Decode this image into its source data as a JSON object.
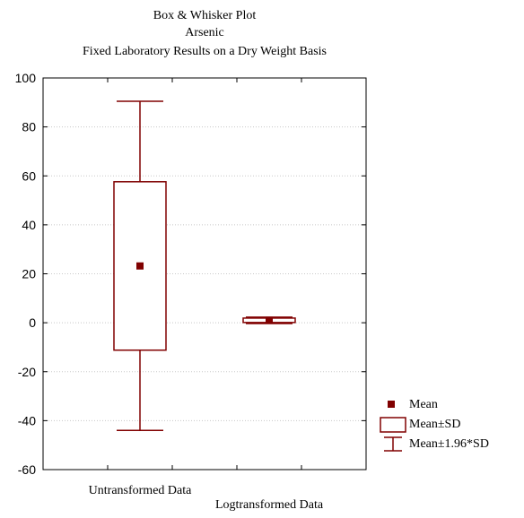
{
  "chart_data": {
    "type": "boxplot",
    "title_lines": [
      "Box & Whisker Plot",
      "Arsenic",
      "Fixed Laboratory Results on a Dry Weight Basis"
    ],
    "ylim": [
      -60,
      100
    ],
    "yticks": [
      -60,
      -40,
      -20,
      0,
      20,
      40,
      60,
      80,
      100
    ],
    "grid": true,
    "legend_position": "bottom-right",
    "categories": [
      "Untransformed Data",
      "Logtransformed Data"
    ],
    "boxes": [
      {
        "category": "Untransformed Data",
        "mean": 23.2,
        "sd_low": -11.2,
        "sd_high": 57.6,
        "whisker_low": -44.0,
        "whisker_high": 90.5
      },
      {
        "category": "Logtransformed Data",
        "mean": 1.0,
        "sd_low": 0.1,
        "sd_high": 1.9,
        "whisker_low": -0.3,
        "whisker_high": 2.3
      }
    ],
    "legend": [
      "Mean",
      "Mean±SD",
      "Mean±1.96*SD"
    ],
    "color": "#800000"
  }
}
